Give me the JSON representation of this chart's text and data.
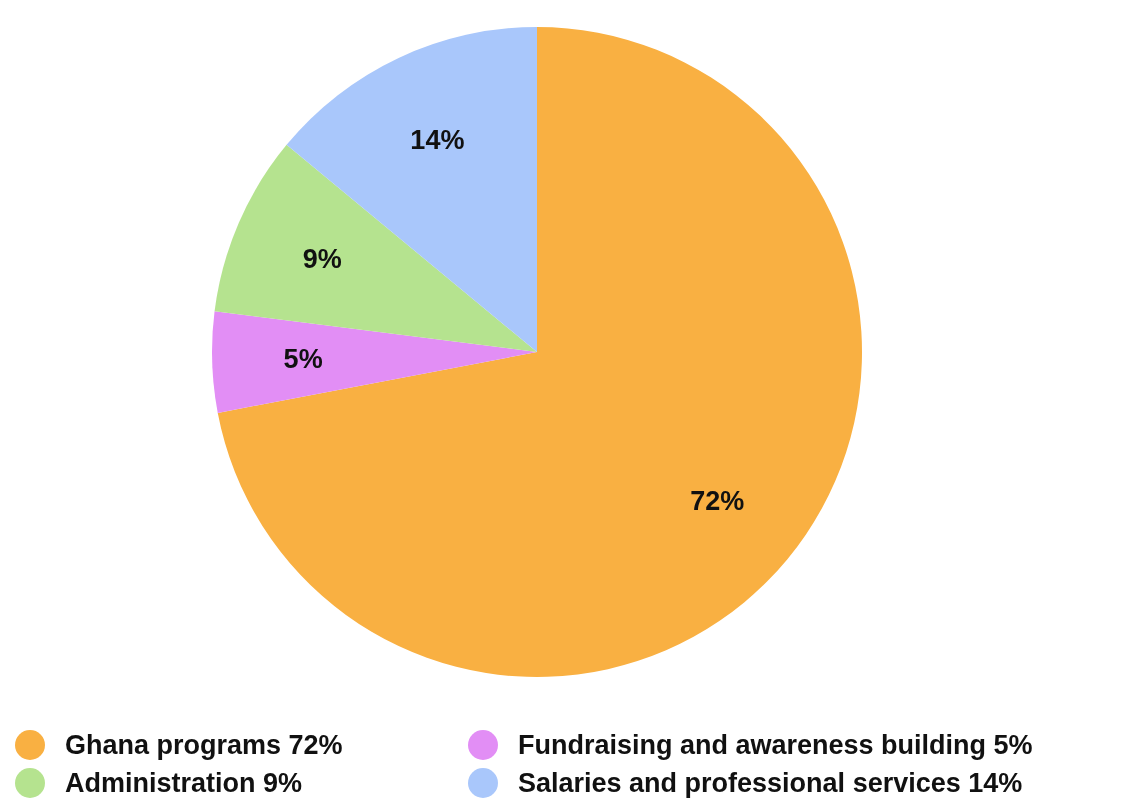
{
  "chart_data": {
    "type": "pie",
    "categories": [
      "Ghana programs 72%",
      "Fundraising and awareness building 5%",
      "Administration 9%",
      "Salaries and professional services 14%"
    ],
    "values": [
      72,
      5,
      9,
      14
    ],
    "colors": [
      "#f9b042",
      "#e28ef5",
      "#b5e38f",
      "#a9c7fb"
    ],
    "value_labels": [
      "72%",
      "5%",
      "9%",
      "14%"
    ],
    "legend": "bottom"
  }
}
